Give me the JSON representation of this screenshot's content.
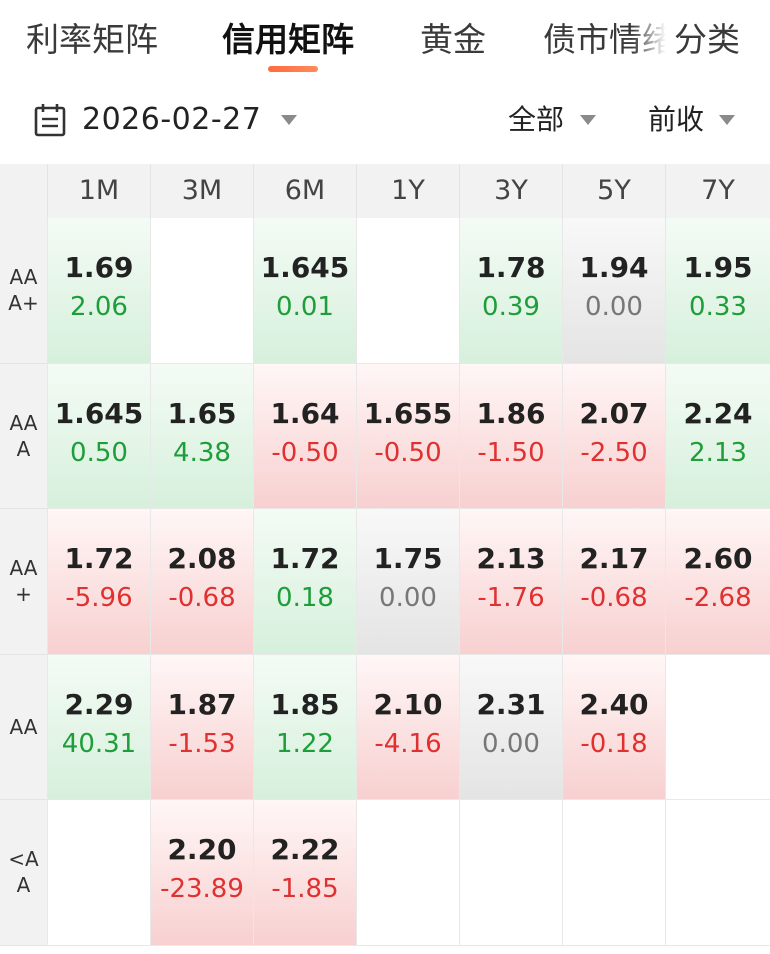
{
  "tabs": [
    {
      "label": "利率矩阵",
      "active": false
    },
    {
      "label": "信用矩阵",
      "active": true
    },
    {
      "label": "黄金",
      "active": false
    },
    {
      "label": "债市情绪",
      "active": false
    },
    {
      "label": "分类",
      "active": false
    }
  ],
  "filters": {
    "date": "2026-02-27",
    "scope": "全部",
    "compare": "前收"
  },
  "matrix": {
    "columns": [
      "1M",
      "3M",
      "6M",
      "1Y",
      "3Y",
      "5Y",
      "7Y"
    ],
    "rows": [
      {
        "label": "AAA+",
        "cells": [
          {
            "yield": "1.69",
            "change": "2.06",
            "tone": "up"
          },
          {
            "yield": "",
            "change": "",
            "tone": "empty"
          },
          {
            "yield": "1.645",
            "change": "0.01",
            "tone": "up"
          },
          {
            "yield": "",
            "change": "",
            "tone": "empty"
          },
          {
            "yield": "1.78",
            "change": "0.39",
            "tone": "up"
          },
          {
            "yield": "1.94",
            "change": "0.00",
            "tone": "flat"
          },
          {
            "yield": "1.95",
            "change": "0.33",
            "tone": "up"
          }
        ]
      },
      {
        "label": "AAA",
        "cells": [
          {
            "yield": "1.645",
            "change": "0.50",
            "tone": "up"
          },
          {
            "yield": "1.65",
            "change": "4.38",
            "tone": "up"
          },
          {
            "yield": "1.64",
            "change": "-0.50",
            "tone": "down"
          },
          {
            "yield": "1.655",
            "change": "-0.50",
            "tone": "down"
          },
          {
            "yield": "1.86",
            "change": "-1.50",
            "tone": "down"
          },
          {
            "yield": "2.07",
            "change": "-2.50",
            "tone": "down"
          },
          {
            "yield": "2.24",
            "change": "2.13",
            "tone": "up"
          }
        ]
      },
      {
        "label": "AA+",
        "cells": [
          {
            "yield": "1.72",
            "change": "-5.96",
            "tone": "down"
          },
          {
            "yield": "2.08",
            "change": "-0.68",
            "tone": "down"
          },
          {
            "yield": "1.72",
            "change": "0.18",
            "tone": "up"
          },
          {
            "yield": "1.75",
            "change": "0.00",
            "tone": "flat"
          },
          {
            "yield": "2.13",
            "change": "-1.76",
            "tone": "down"
          },
          {
            "yield": "2.17",
            "change": "-0.68",
            "tone": "down"
          },
          {
            "yield": "2.60",
            "change": "-2.68",
            "tone": "down"
          }
        ]
      },
      {
        "label": "AA",
        "cells": [
          {
            "yield": "2.29",
            "change": "40.31",
            "tone": "up"
          },
          {
            "yield": "1.87",
            "change": "-1.53",
            "tone": "down"
          },
          {
            "yield": "1.85",
            "change": "1.22",
            "tone": "up"
          },
          {
            "yield": "2.10",
            "change": "-4.16",
            "tone": "down"
          },
          {
            "yield": "2.31",
            "change": "0.00",
            "tone": "flat"
          },
          {
            "yield": "2.40",
            "change": "-0.18",
            "tone": "down"
          },
          {
            "yield": "",
            "change": "",
            "tone": "empty"
          }
        ]
      },
      {
        "label": "<AA",
        "cells": [
          {
            "yield": "",
            "change": "",
            "tone": "empty"
          },
          {
            "yield": "2.20",
            "change": "-23.89",
            "tone": "down"
          },
          {
            "yield": "2.22",
            "change": "-1.85",
            "tone": "down"
          },
          {
            "yield": "",
            "change": "",
            "tone": "empty"
          },
          {
            "yield": "",
            "change": "",
            "tone": "empty"
          },
          {
            "yield": "",
            "change": "",
            "tone": "empty"
          },
          {
            "yield": "",
            "change": "",
            "tone": "empty"
          }
        ]
      }
    ]
  },
  "colors": {
    "accent": "#ff6a3d",
    "up": "#1e9e3a",
    "down": "#e03030",
    "flat": "#777777"
  },
  "icons": {
    "calendar": "calendar-icon",
    "dropdown": "triangle-down-icon"
  }
}
